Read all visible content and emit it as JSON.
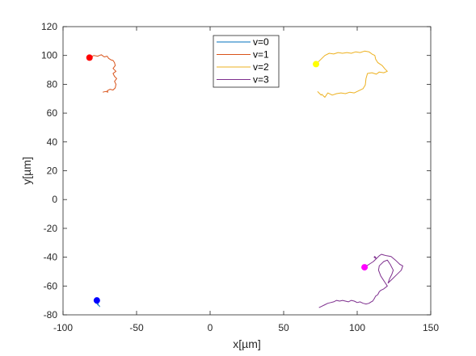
{
  "chart_data": {
    "type": "line",
    "title": "",
    "xlabel": "x[µm]",
    "ylabel": "y[µm]",
    "xlim": [
      -100,
      150
    ],
    "ylim": [
      -80,
      120
    ],
    "xticks": [
      -100,
      -50,
      0,
      50,
      100,
      150
    ],
    "yticks": [
      -80,
      -60,
      -40,
      -20,
      0,
      20,
      40,
      60,
      80,
      100,
      120
    ],
    "grid": false,
    "legend": "top-center",
    "series": [
      {
        "name": "v=0",
        "color": "#0072bd",
        "start_color": "#0000ff",
        "x": [
          -77,
          -76.5,
          -77.5,
          -76,
          -76.5,
          -75.5,
          -75
        ],
        "y": [
          -70,
          -71.5,
          -72,
          -72.5,
          -73,
          -73.5,
          -74.5
        ]
      },
      {
        "name": "v=1",
        "color": "#d95319",
        "start_color": "#ff0000",
        "x": [
          -82,
          -79,
          -76.5,
          -74,
          -72,
          -70,
          -69,
          -67.5,
          -66,
          -65,
          -64.5,
          -66,
          -64,
          -66,
          -65,
          -63.5,
          -65,
          -64,
          -64.5,
          -66,
          -68,
          -70,
          -69.5,
          -71,
          -73
        ],
        "y": [
          98.5,
          100,
          99.5,
          100.5,
          99,
          99.5,
          98,
          97,
          96.5,
          95,
          93,
          91,
          89,
          87.5,
          85.5,
          84,
          82,
          80,
          77.5,
          76,
          76.5,
          75.5,
          74.5,
          75,
          74.5
        ]
      },
      {
        "name": "v=2",
        "color": "#edb120",
        "start_color": "#ffff00",
        "x": [
          72,
          74,
          76,
          78,
          81,
          84,
          87,
          90,
          93,
          96,
          99,
          102,
          105,
          108,
          110,
          112,
          112.5,
          114,
          117,
          119,
          120.5,
          118,
          115,
          113,
          110,
          107,
          106,
          105.5,
          104,
          101,
          98,
          95,
          92,
          89,
          86,
          83,
          80,
          78,
          77,
          76,
          75.5,
          74,
          73
        ],
        "y": [
          94,
          96,
          98,
          100,
          101.5,
          101,
          102,
          101.5,
          102,
          101.5,
          102.5,
          102,
          103,
          102.5,
          101,
          100,
          97.5,
          95,
          93,
          90.5,
          89,
          88,
          88.5,
          87,
          88,
          87.5,
          84,
          79.5,
          77,
          75.5,
          74,
          74.5,
          73.5,
          74,
          73.5,
          72.5,
          74,
          71,
          72,
          73,
          72.5,
          74,
          75
        ]
      },
      {
        "name": "v=3",
        "color": "#7e2f8e",
        "start_color": "#ff00ff",
        "x": [
          105,
          108,
          111,
          113,
          112,
          111.5,
          113,
          115,
          116.5,
          118,
          120,
          123,
          126,
          129,
          131,
          130,
          128,
          126,
          124,
          122,
          121,
          122,
          123.5,
          124.5,
          122.5,
          120.5,
          118,
          115,
          114.5,
          116,
          118.5,
          120.5,
          118,
          116,
          115,
          114,
          112.5,
          111.5,
          110.5,
          109.5,
          108,
          106,
          104,
          102,
          100,
          98,
          96,
          94,
          92,
          90,
          88,
          86,
          84,
          82,
          80,
          78,
          76,
          74
        ],
        "y": [
          -47,
          -45,
          -43,
          -41,
          -39.5,
          -40,
          -41,
          -39,
          -38,
          -38.5,
          -39,
          -39.5,
          -42,
          -45,
          -46,
          -49,
          -51,
          -53,
          -55,
          -57,
          -58,
          -55,
          -52,
          -49,
          -45,
          -42,
          -43,
          -46,
          -49,
          -53,
          -57,
          -60,
          -62,
          -63,
          -64,
          -66,
          -67,
          -69,
          -70.5,
          -71,
          -72,
          -72.5,
          -72,
          -71,
          -71.5,
          -70.5,
          -70,
          -71,
          -70.5,
          -70,
          -70.5,
          -70,
          -71,
          -71.5,
          -72,
          -73,
          -74,
          -75
        ]
      }
    ]
  }
}
